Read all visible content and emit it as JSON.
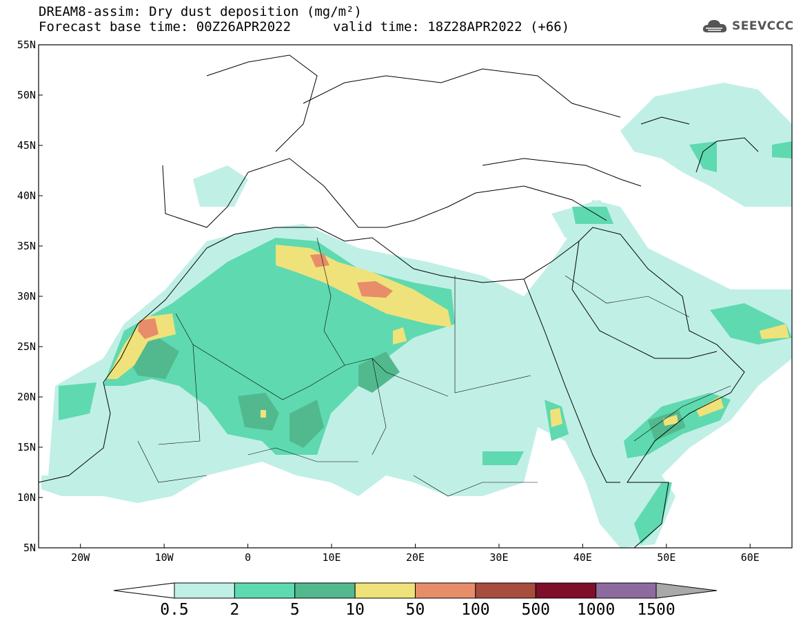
{
  "header": {
    "title_line1": "DREAM8-assim: Dry dust deposition (mg/m²)",
    "title_line2_left": "Forecast base time: 00Z26APR2022",
    "title_line2_right": "valid time: 18Z28APR2022 (+66)",
    "logo_text": "SEEVCCC",
    "logo_icon": "cloud-icon"
  },
  "map": {
    "lat_range": [
      5,
      55
    ],
    "lon_range": [
      -25,
      65
    ],
    "y_ticks": [
      "55N",
      "50N",
      "45N",
      "40N",
      "35N",
      "30N",
      "25N",
      "20N",
      "15N",
      "10N",
      "5N"
    ],
    "x_ticks": [
      "20W",
      "10W",
      "0",
      "10E",
      "20E",
      "30E",
      "40E",
      "50E",
      "60E"
    ]
  },
  "colorbar": {
    "labels": [
      "0.5",
      "2",
      "5",
      "10",
      "50",
      "100",
      "500",
      "1000",
      "1500"
    ],
    "colors": [
      "#c0efe6",
      "#5fd9b0",
      "#52b98e",
      "#f0e27a",
      "#e78d6a",
      "#a84c3e",
      "#7e0e2a",
      "#8d6b9e",
      "#a9a9a9"
    ]
  }
}
